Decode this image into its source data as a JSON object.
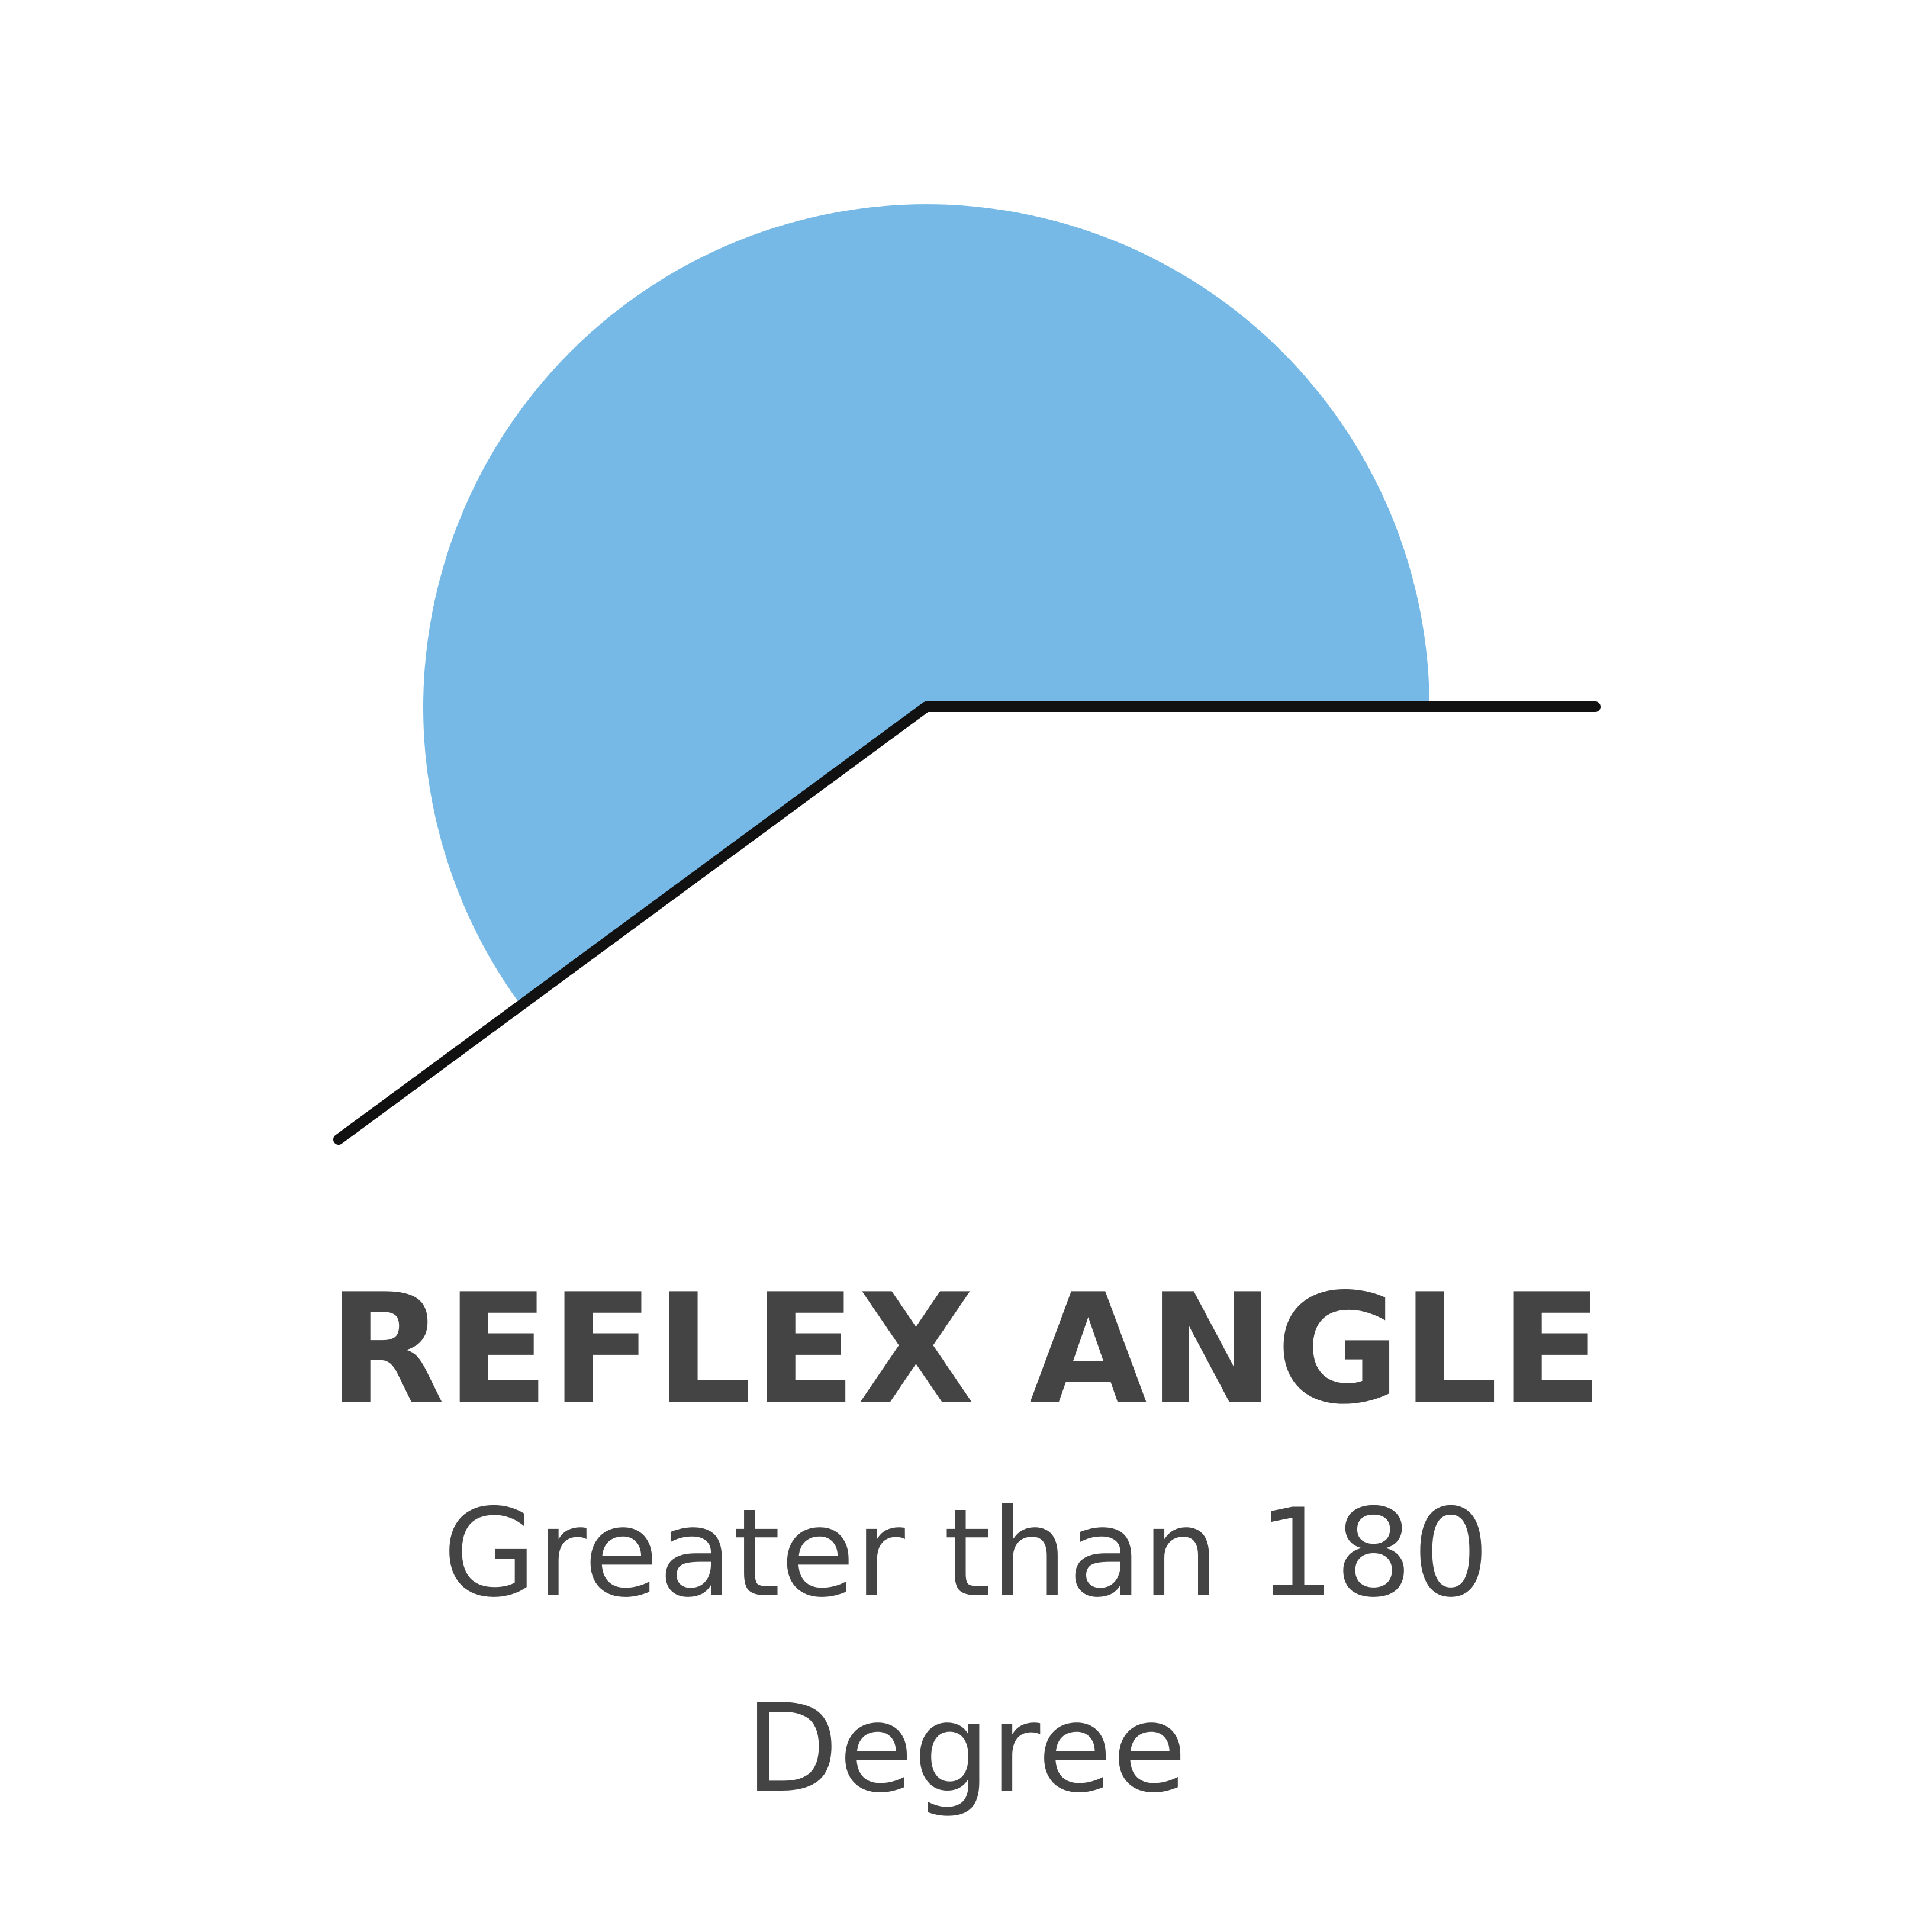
{
  "diagram": {
    "angle_type": "reflex",
    "arc_color": "#76B9E6",
    "line_color": "#111111",
    "background": "#FFFFFF"
  },
  "caption": {
    "title": "REFLEX ANGLE",
    "line1": "Greater than 180",
    "line2": "Degree",
    "text_color": "#444444"
  }
}
